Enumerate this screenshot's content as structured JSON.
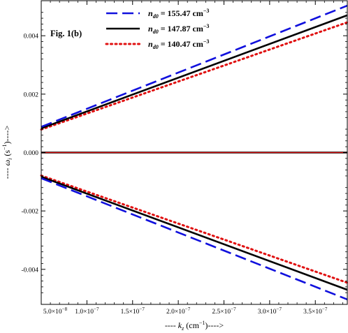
{
  "chart_data": {
    "type": "line",
    "annotation": "Fig. 1(b)",
    "xlabel": {
      "prefix": "---- ",
      "var": "k",
      "sub": "z",
      "unit_open": " (cm",
      "sup": "−1",
      "suffix": ")---->"
    },
    "ylabel": {
      "prefix": "---- ",
      "var": "ω",
      "sub": "i",
      "unit_open": " (s",
      "sup": "−1",
      "suffix": ")---->"
    },
    "xlim": [
      5e-08,
      3.85e-07
    ],
    "ylim": [
      -0.0052,
      0.0052
    ],
    "x_ticks": [
      {
        "value": 5e-08,
        "mant": "5.0",
        "exp": "−8"
      },
      {
        "value": 1e-07,
        "mant": "1.0",
        "exp": "−7"
      },
      {
        "value": 1.5e-07,
        "mant": "1.5",
        "exp": "−7"
      },
      {
        "value": 2e-07,
        "mant": "2.0",
        "exp": "−7"
      },
      {
        "value": 2.5e-07,
        "mant": "2.5",
        "exp": "−7"
      },
      {
        "value": 3e-07,
        "mant": "3.0",
        "exp": "−7"
      },
      {
        "value": 3.5e-07,
        "mant": "3.5",
        "exp": "−7"
      }
    ],
    "y_ticks": [
      {
        "value": 0.004,
        "label": "0.004"
      },
      {
        "value": 0.002,
        "label": "0.002"
      },
      {
        "value": 0.0,
        "label": "0.000"
      },
      {
        "value": -0.002,
        "label": "-0.002"
      },
      {
        "value": -0.004,
        "label": "-0.004"
      }
    ],
    "grid": false,
    "legend_position": "top-center",
    "series": [
      {
        "name_var": "n",
        "name_sub": "d0",
        "name_value": " = 155.47 cm",
        "name_sup": "−3",
        "color": "#1010dd",
        "dash": "long-dash",
        "x": [
          5e-08,
          3.85e-07
        ],
        "upper": [
          0.00088,
          0.00503
        ],
        "lower": [
          -0.00088,
          -0.00503
        ]
      },
      {
        "name_var": "n",
        "name_sub": "d0",
        "name_value": " = 147.87 cm",
        "name_sup": "−3",
        "color": "#000000",
        "dash": "solid",
        "x": [
          5e-08,
          3.85e-07
        ],
        "upper": [
          0.00083,
          0.0047
        ],
        "lower": [
          -0.00083,
          -0.0047
        ]
      },
      {
        "name_var": "n",
        "name_sub": "d0",
        "name_value": " = 140.47 cm",
        "name_sup": "−3",
        "color": "#e01010",
        "dash": "dotted",
        "x": [
          5e-08,
          3.85e-07
        ],
        "upper": [
          0.00079,
          0.00446
        ],
        "lower": [
          -0.00079,
          -0.00446
        ]
      }
    ],
    "zero_lines": [
      {
        "color": "#000000",
        "value": 0.0
      },
      {
        "color": "#e01010",
        "value": 0.0
      }
    ]
  }
}
